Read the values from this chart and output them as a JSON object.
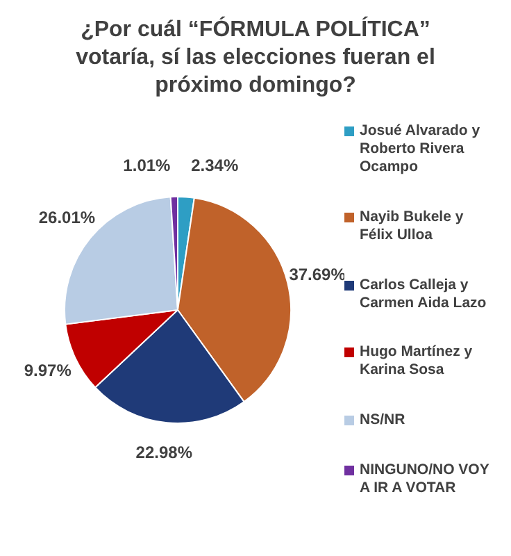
{
  "chart_data": {
    "type": "pie",
    "title": "¿Por cuál “FÓRMULA POLÍTICA” votaría, sí las elecciones fueran el próximo domingo?",
    "categories": [
      "Josué Alvarado y Roberto Rivera Ocampo",
      "Nayib Bukele y Félix Ulloa",
      "Carlos Calleja y Carmen Aida Lazo",
      "Hugo Martínez y Karina Sosa",
      "NS/NR",
      "NINGUNO/NO VOY A IR A VOTAR"
    ],
    "values": [
      2.34,
      37.69,
      22.98,
      9.97,
      26.01,
      1.01
    ],
    "colors": [
      "#2e9ec4",
      "#c0622a",
      "#1f3a78",
      "#c00000",
      "#b8cce4",
      "#7030a0"
    ],
    "value_labels": [
      "2.34%",
      "37.69%",
      "22.98%",
      "9.97%",
      "26.01%",
      "1.01%"
    ],
    "legend": "right"
  }
}
